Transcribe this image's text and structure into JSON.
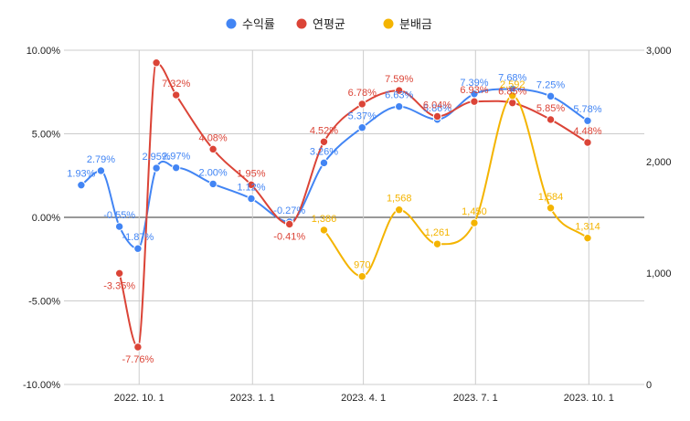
{
  "chart_data": {
    "type": "line",
    "legend_position": "top",
    "grid": true,
    "smooth": true,
    "legend": [
      {
        "key": "return",
        "label": "수익률",
        "color": "#4285F4"
      },
      {
        "key": "annual",
        "label": "연평균",
        "color": "#DB4437"
      },
      {
        "key": "dividend",
        "label": "분배금",
        "color": "#F4B400"
      }
    ],
    "x_axis": {
      "min": "2022-08-01",
      "max": "2023-11-15",
      "ticks": [
        {
          "x": "2022-10-01",
          "label": "2022. 10. 1"
        },
        {
          "x": "2023-01-01",
          "label": "2023. 1. 1"
        },
        {
          "x": "2023-04-01",
          "label": "2023. 4. 1"
        },
        {
          "x": "2023-07-01",
          "label": "2023. 7. 1"
        },
        {
          "x": "2023-10-01",
          "label": "2023. 10. 1"
        }
      ]
    },
    "y_left": {
      "min": -10,
      "max": 10,
      "ticks": [
        {
          "v": 10,
          "label": "10.00%"
        },
        {
          "v": 5,
          "label": "5.00%"
        },
        {
          "v": 0,
          "label": "0.00%"
        },
        {
          "v": -5,
          "label": "-5.00%"
        },
        {
          "v": -10,
          "label": "-10.00%"
        }
      ]
    },
    "y_right": {
      "min": 0,
      "max": 3000,
      "ticks": [
        {
          "v": 3000,
          "label": "3,000"
        },
        {
          "v": 2000,
          "label": "2,000"
        },
        {
          "v": 1000,
          "label": "1,000"
        },
        {
          "v": 0,
          "label": "0"
        }
      ]
    },
    "series": [
      {
        "key": "return",
        "name": "수익률",
        "axis": "left",
        "color": "#4285F4",
        "points": [
          {
            "x": "2022-08-15",
            "y": 1.93,
            "label": "1.93%"
          },
          {
            "x": "2022-08-31",
            "y": 2.79,
            "label": "2.79%"
          },
          {
            "x": "2022-09-15",
            "y": -0.55,
            "label": "-0.55%"
          },
          {
            "x": "2022-09-30",
            "y": -1.87,
            "label": "-1.87%"
          },
          {
            "x": "2022-10-15",
            "y": 2.95,
            "label": "2.95%"
          },
          {
            "x": "2022-10-31",
            "y": 2.97,
            "label": "2.97%"
          },
          {
            "x": "2022-11-30",
            "y": 2.0,
            "label": "2.00%"
          },
          {
            "x": "2022-12-31",
            "y": 1.12,
            "label": "1.12%"
          },
          {
            "x": "2023-01-31",
            "y": -0.27,
            "label": "-0.27%"
          },
          {
            "x": "2023-02-28",
            "y": 3.26,
            "label": "3.26%"
          },
          {
            "x": "2023-03-31",
            "y": 5.37,
            "label": "5.37%"
          },
          {
            "x": "2023-04-30",
            "y": 6.63,
            "label": "6.63%"
          },
          {
            "x": "2023-05-31",
            "y": 5.86,
            "label": "5.86%"
          },
          {
            "x": "2023-06-30",
            "y": 7.39,
            "label": "7.39%"
          },
          {
            "x": "2023-07-31",
            "y": 7.68,
            "label": "7.68%"
          },
          {
            "x": "2023-08-31",
            "y": 7.25,
            "label": "7.25%"
          },
          {
            "x": "2023-09-30",
            "y": 5.78,
            "label": "5.78%"
          }
        ]
      },
      {
        "key": "annual",
        "name": "연평균",
        "axis": "left",
        "color": "#DB4437",
        "points": [
          {
            "x": "2022-09-15",
            "y": -3.35,
            "label": "-3.35%"
          },
          {
            "x": "2022-09-30",
            "y": -7.76,
            "label": "-7.76%"
          },
          {
            "x": "2022-10-15",
            "y": 9.25,
            "label": ""
          },
          {
            "x": "2022-10-31",
            "y": 7.32,
            "label": "7.32%"
          },
          {
            "x": "2022-11-30",
            "y": 4.08,
            "label": "4.08%"
          },
          {
            "x": "2022-12-31",
            "y": 1.95,
            "label": "1.95%"
          },
          {
            "x": "2023-01-31",
            "y": -0.41,
            "label": "-0.41%"
          },
          {
            "x": "2023-02-28",
            "y": 4.52,
            "label": "4.52%"
          },
          {
            "x": "2023-03-31",
            "y": 6.78,
            "label": "6.78%"
          },
          {
            "x": "2023-04-30",
            "y": 7.59,
            "label": "7.59%"
          },
          {
            "x": "2023-05-31",
            "y": 6.04,
            "label": "6.04%"
          },
          {
            "x": "2023-06-30",
            "y": 6.93,
            "label": "6.93%"
          },
          {
            "x": "2023-07-31",
            "y": 6.85,
            "label": "6.85%"
          },
          {
            "x": "2023-08-31",
            "y": 5.85,
            "label": "5.85%"
          },
          {
            "x": "2023-09-30",
            "y": 4.48,
            "label": "4.48%"
          }
        ]
      },
      {
        "key": "dividend",
        "name": "분배금",
        "axis": "right",
        "color": "#F4B400",
        "points": [
          {
            "x": "2023-02-28",
            "y": 1386,
            "label": "1,386"
          },
          {
            "x": "2023-03-31",
            "y": 970,
            "label": "970"
          },
          {
            "x": "2023-04-30",
            "y": 1568,
            "label": "1,568"
          },
          {
            "x": "2023-05-31",
            "y": 1261,
            "label": "1,261"
          },
          {
            "x": "2023-06-30",
            "y": 1450,
            "label": "1,450"
          },
          {
            "x": "2023-07-31",
            "y": 2592,
            "label": "2,592"
          },
          {
            "x": "2023-08-31",
            "y": 1584,
            "label": "1,584"
          },
          {
            "x": "2023-09-30",
            "y": 1314,
            "label": "1,314"
          }
        ]
      }
    ]
  }
}
